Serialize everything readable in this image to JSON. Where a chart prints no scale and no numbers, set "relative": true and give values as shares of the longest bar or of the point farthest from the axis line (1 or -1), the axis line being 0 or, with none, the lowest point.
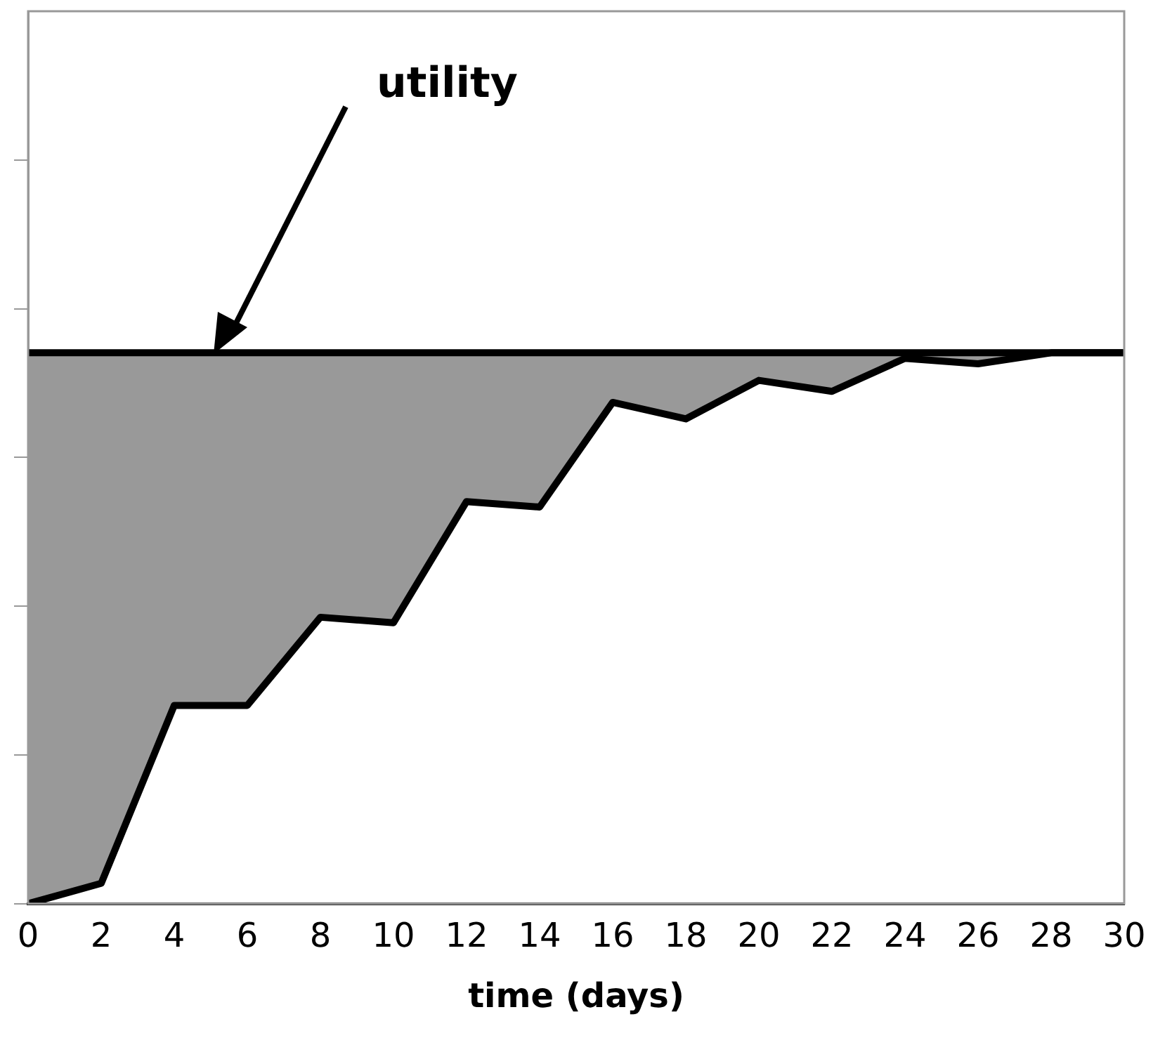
{
  "chart_data": {
    "type": "line",
    "relative": true,
    "xlabel": "time (days)",
    "x": [
      0,
      2,
      4,
      6,
      8,
      10,
      12,
      14,
      16,
      18,
      20,
      22,
      24,
      26,
      28,
      30
    ],
    "xlim": [
      0,
      30
    ],
    "xticks": [
      0,
      2,
      4,
      6,
      8,
      10,
      12,
      14,
      16,
      18,
      20,
      22,
      24,
      26,
      28,
      30
    ],
    "series": [
      {
        "color": "#000000",
        "values": [
          1,
          1,
          1,
          1,
          1,
          1,
          1,
          1,
          1,
          1,
          1,
          1,
          1,
          1,
          1,
          1
        ],
        "lower": [
          0,
          0.037,
          0.36,
          0.36,
          0.52,
          0.51,
          0.73,
          0.72,
          0.91,
          0.88,
          0.95,
          0.93,
          0.99,
          0.98,
          1,
          1
        ],
        "upper": [
          1,
          1,
          1,
          1,
          1,
          1,
          1,
          1,
          1,
          1,
          1,
          1,
          1,
          1,
          1,
          1
        ]
      },
      {
        "color": "#000000",
        "values": [
          0,
          0.037,
          0.36,
          0.36,
          0.52,
          0.51,
          0.73,
          0.72,
          0.91,
          0.88,
          0.95,
          0.93,
          0.99,
          0.98,
          1,
          1
        ]
      }
    ],
    "annotations": [
      "utility"
    ],
    "grid": false,
    "legend": false,
    "marker": "none",
    "line_style": "solid"
  }
}
